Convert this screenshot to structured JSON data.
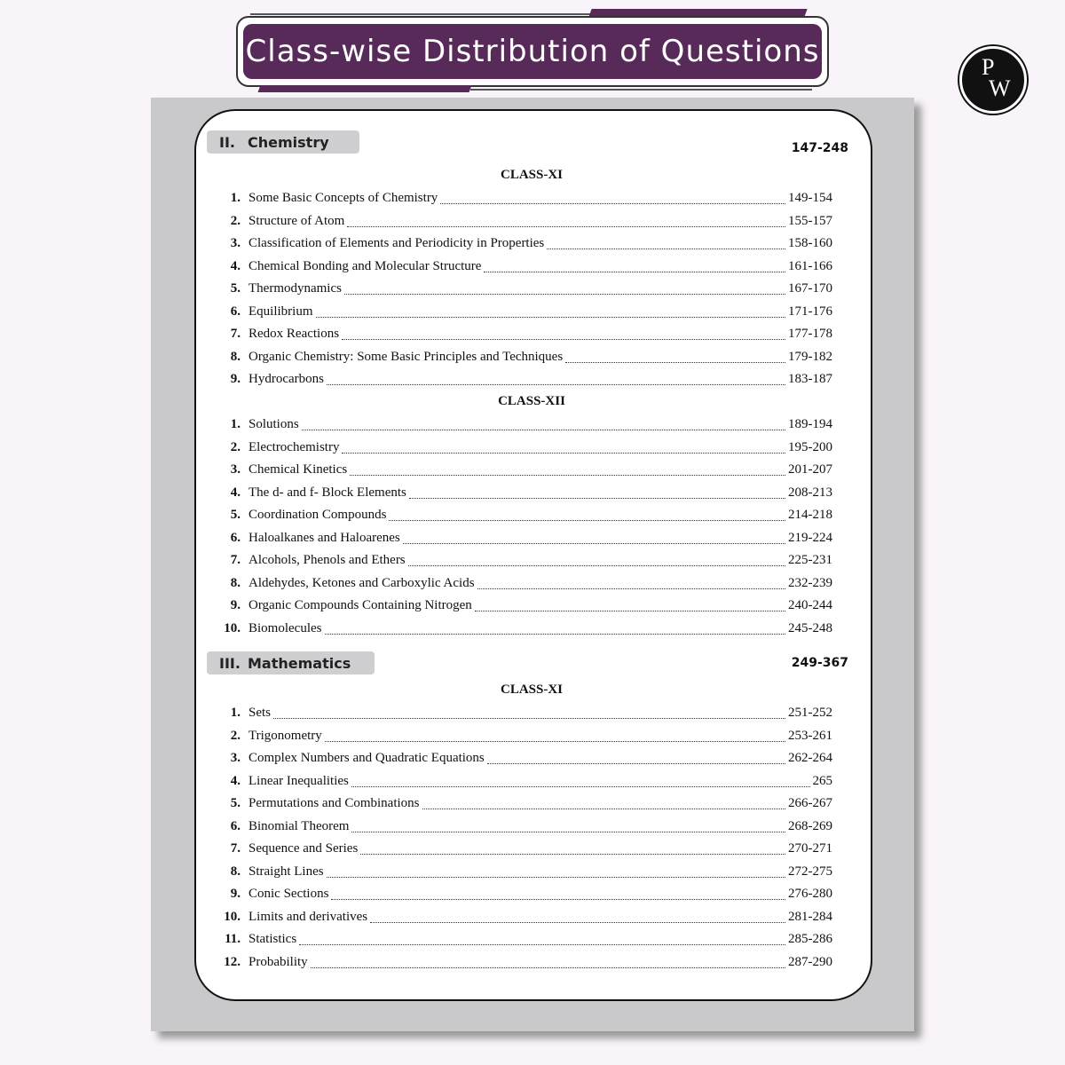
{
  "title": "Class-wise Distribution of Questions",
  "logo": {
    "text": "PW"
  },
  "colors": {
    "banner": "#582a5a",
    "panel": "#c9c9cb",
    "section_tab": "#cfcfd1"
  },
  "sections": [
    {
      "num": "II.",
      "name": "Chemistry",
      "range": "147-248",
      "classes": [
        {
          "label": "CLASS-XI",
          "items": [
            {
              "n": "1.",
              "t": "Some Basic Concepts of Chemistry",
              "p": "149-154"
            },
            {
              "n": "2.",
              "t": "Structure of Atom",
              "p": "155-157"
            },
            {
              "n": "3.",
              "t": "Classification of Elements and Periodicity in Properties",
              "p": "158-160"
            },
            {
              "n": "4.",
              "t": "Chemical Bonding and Molecular Structure",
              "p": "161-166"
            },
            {
              "n": "5.",
              "t": "Thermodynamics",
              "p": "167-170"
            },
            {
              "n": "6.",
              "t": "Equilibrium",
              "p": "171-176"
            },
            {
              "n": "7.",
              "t": "Redox Reactions",
              "p": "177-178"
            },
            {
              "n": "8.",
              "t": "Organic Chemistry: Some Basic Principles and Techniques",
              "p": "179-182"
            },
            {
              "n": "9.",
              "t": "Hydrocarbons",
              "p": "183-187"
            }
          ]
        },
        {
          "label": "CLASS-XII",
          "items": [
            {
              "n": "1.",
              "t": "Solutions",
              "p": "189-194"
            },
            {
              "n": "2.",
              "t": "Electrochemistry",
              "p": "195-200"
            },
            {
              "n": "3.",
              "t": "Chemical Kinetics",
              "p": "201-207"
            },
            {
              "n": "4.",
              "t": "The d- and f- Block Elements",
              "p": "208-213"
            },
            {
              "n": "5.",
              "t": "Coordination Compounds",
              "p": "214-218"
            },
            {
              "n": "6.",
              "t": "Haloalkanes and Haloarenes",
              "p": "219-224"
            },
            {
              "n": "7.",
              "t": "Alcohols, Phenols and Ethers",
              "p": "225-231"
            },
            {
              "n": "8.",
              "t": "Aldehydes, Ketones and Carboxylic Acids",
              "p": "232-239"
            },
            {
              "n": "9.",
              "t": "Organic Compounds Containing Nitrogen",
              "p": "240-244"
            },
            {
              "n": "10.",
              "t": "Biomolecules",
              "p": "245-248"
            }
          ]
        }
      ]
    },
    {
      "num": "III.",
      "name": "Mathematics",
      "range": "249-367",
      "classes": [
        {
          "label": "CLASS-XI",
          "items": [
            {
              "n": "1.",
              "t": "Sets",
              "p": "251-252"
            },
            {
              "n": "2.",
              "t": "Trigonometry",
              "p": "253-261"
            },
            {
              "n": "3.",
              "t": "Complex Numbers and Quadratic Equations",
              "p": "262-264"
            },
            {
              "n": "4.",
              "t": "Linear Inequalities",
              "p": "265"
            },
            {
              "n": "5.",
              "t": "Permutations and Combinations",
              "p": "266-267"
            },
            {
              "n": "6.",
              "t": "Binomial Theorem",
              "p": "268-269"
            },
            {
              "n": "7.",
              "t": "Sequence and Series",
              "p": "270-271"
            },
            {
              "n": "8.",
              "t": "Straight Lines",
              "p": "272-275"
            },
            {
              "n": "9.",
              "t": "Conic Sections",
              "p": "276-280"
            },
            {
              "n": "10.",
              "t": "Limits and derivatives",
              "p": "281-284"
            },
            {
              "n": "11.",
              "t": "Statistics",
              "p": "285-286"
            },
            {
              "n": "12.",
              "t": "Probability",
              "p": "287-290"
            }
          ]
        }
      ]
    }
  ]
}
